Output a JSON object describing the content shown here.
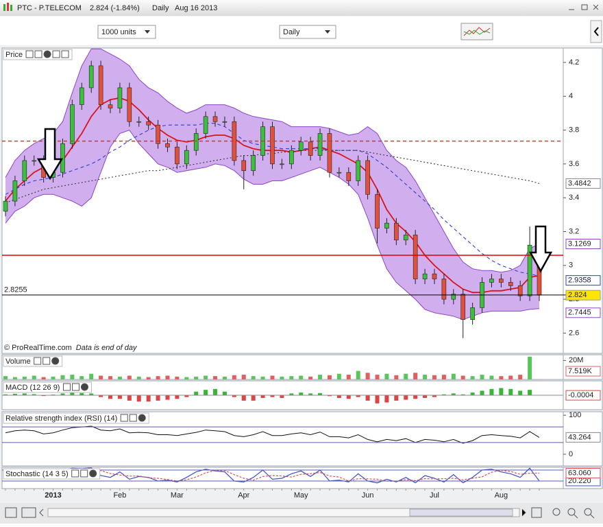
{
  "window": {
    "symbol": "PTC - P.TELECOM",
    "quote": "2.824 (-1.84%)",
    "period": "Daily",
    "date": "Aug 16 2013"
  },
  "toolbar": {
    "units": "1000 units",
    "timeframe": "Daily"
  },
  "chart_data": [
    {
      "type": "candlestick",
      "title": "Price",
      "copyright": "© ProRealTime.com",
      "note": "Data is end of day",
      "categories": [
        null,
        null,
        null,
        null,
        null,
        "2013",
        null,
        null,
        null,
        null,
        null,
        null,
        "Feb",
        null,
        null,
        null,
        null,
        null,
        "Mar",
        null,
        null,
        null,
        null,
        null,
        null,
        "Apr",
        null,
        null,
        null,
        null,
        null,
        "May",
        null,
        null,
        null,
        null,
        null,
        null,
        "Jun",
        null,
        null,
        null,
        null,
        null,
        null,
        "Jul",
        null,
        null,
        null,
        null,
        null,
        null,
        "Aug",
        null,
        null,
        null,
        null
      ],
      "open": [
        3.32,
        3.38,
        3.5,
        3.62,
        3.62,
        3.52,
        3.55,
        3.72,
        3.95,
        4.05,
        4.18,
        3.95,
        3.93,
        4.05,
        3.85,
        3.85,
        3.83,
        3.72,
        3.7,
        3.6,
        3.68,
        3.78,
        3.88,
        3.85,
        3.85,
        3.62,
        3.56,
        3.65,
        3.82,
        3.6,
        3.6,
        3.68,
        3.73,
        3.65,
        3.78,
        3.55,
        3.55,
        3.5,
        3.62,
        3.42,
        3.22,
        3.25,
        3.15,
        3.18,
        2.92,
        2.95,
        2.92,
        2.8,
        2.83,
        2.68,
        2.75,
        2.9,
        2.92,
        2.9,
        2.88,
        2.82,
        3.12
      ],
      "high": [
        3.41,
        3.53,
        3.65,
        3.65,
        3.65,
        3.58,
        3.75,
        3.98,
        4.08,
        4.21,
        4.21,
        3.98,
        4.08,
        4.08,
        3.88,
        3.88,
        3.86,
        3.75,
        3.73,
        3.71,
        3.81,
        3.91,
        3.91,
        3.88,
        3.88,
        3.65,
        3.68,
        3.85,
        3.85,
        3.63,
        3.71,
        3.76,
        3.76,
        3.81,
        3.81,
        3.58,
        3.58,
        3.65,
        3.65,
        3.45,
        3.28,
        3.28,
        3.21,
        3.21,
        2.98,
        2.98,
        2.95,
        2.86,
        2.86,
        2.78,
        2.93,
        2.95,
        2.95,
        2.93,
        2.91,
        3.23,
        3.15
      ],
      "low": [
        3.29,
        3.35,
        3.47,
        3.59,
        3.49,
        3.49,
        3.52,
        3.69,
        3.92,
        4.02,
        3.92,
        3.9,
        3.9,
        3.82,
        3.82,
        3.8,
        3.69,
        3.67,
        3.57,
        3.57,
        3.65,
        3.75,
        3.82,
        3.82,
        3.59,
        3.45,
        3.53,
        3.62,
        3.57,
        3.57,
        3.57,
        3.65,
        3.62,
        3.62,
        3.52,
        3.52,
        3.47,
        3.47,
        3.39,
        3.13,
        3.19,
        3.12,
        3.12,
        2.89,
        2.89,
        2.89,
        2.77,
        2.77,
        2.57,
        2.65,
        2.72,
        2.87,
        2.87,
        2.85,
        2.79,
        2.79,
        2.79
      ],
      "close": [
        3.38,
        3.5,
        3.62,
        3.62,
        3.52,
        3.55,
        3.72,
        3.95,
        4.05,
        4.18,
        3.95,
        3.93,
        4.05,
        3.85,
        3.85,
        3.83,
        3.72,
        3.7,
        3.6,
        3.68,
        3.78,
        3.88,
        3.85,
        3.85,
        3.62,
        3.56,
        3.65,
        3.82,
        3.6,
        3.6,
        3.68,
        3.73,
        3.65,
        3.78,
        3.55,
        3.55,
        3.5,
        3.62,
        3.42,
        3.22,
        3.25,
        3.15,
        3.18,
        2.92,
        2.95,
        2.92,
        2.8,
        2.83,
        2.68,
        2.75,
        2.9,
        2.92,
        2.9,
        2.88,
        2.82,
        3.12,
        2.824
      ],
      "up_color": "#3cbf3c",
      "down_color": "#e0503c",
      "close_label_color": "#ffe600",
      "band": {
        "color": "#c9a0ea",
        "edge_color": "#8e44c9",
        "upper": [
          3.52,
          3.62,
          3.68,
          3.72,
          3.75,
          3.78,
          3.85,
          4.02,
          4.18,
          4.28,
          4.28,
          4.25,
          4.22,
          4.18,
          4.1,
          4.05,
          4.02,
          3.97,
          3.93,
          3.9,
          3.92,
          3.95,
          3.95,
          3.95,
          3.93,
          3.9,
          3.88,
          3.87,
          3.86,
          3.85,
          3.82,
          3.82,
          3.82,
          3.82,
          3.81,
          3.79,
          3.77,
          3.78,
          3.82,
          3.78,
          3.68,
          3.62,
          3.58,
          3.5,
          3.4,
          3.3,
          3.2,
          3.1,
          3.02,
          2.98,
          2.97,
          2.97,
          2.96,
          2.97,
          3.0,
          3.1,
          3.1269
        ],
        "lower": [
          3.25,
          3.32,
          3.35,
          3.4,
          3.42,
          3.42,
          3.4,
          3.38,
          3.35,
          3.4,
          3.55,
          3.7,
          3.78,
          3.8,
          3.72,
          3.66,
          3.6,
          3.58,
          3.55,
          3.56,
          3.57,
          3.58,
          3.6,
          3.59,
          3.56,
          3.51,
          3.48,
          3.48,
          3.5,
          3.5,
          3.52,
          3.54,
          3.56,
          3.58,
          3.55,
          3.52,
          3.48,
          3.42,
          3.28,
          3.12,
          2.98,
          2.9,
          2.85,
          2.8,
          2.74,
          2.72,
          2.71,
          2.7,
          2.68,
          2.7,
          2.72,
          2.73,
          2.73,
          2.73,
          2.73,
          2.74,
          2.7445
        ]
      },
      "lines": [
        {
          "color": "#d9141e",
          "style": "solid",
          "values": [
            3.38,
            3.45,
            3.5,
            3.55,
            3.58,
            3.6,
            3.62,
            3.7,
            3.78,
            3.88,
            3.95,
            3.98,
            3.99,
            3.97,
            3.92,
            3.86,
            3.81,
            3.77,
            3.74,
            3.73,
            3.74,
            3.76,
            3.77,
            3.77,
            3.75,
            3.71,
            3.69,
            3.68,
            3.68,
            3.68,
            3.67,
            3.68,
            3.69,
            3.7,
            3.68,
            3.66,
            3.63,
            3.6,
            3.55,
            3.45,
            3.33,
            3.25,
            3.2,
            3.14,
            3.06,
            3.0,
            2.95,
            2.9,
            2.86,
            2.84,
            2.84,
            2.85,
            2.85,
            2.86,
            2.87,
            2.93,
            2.94
          ]
        },
        {
          "color": "#2a3fd6",
          "style": "dashed",
          "label": true,
          "values": [
            3.42,
            3.45,
            3.48,
            3.5,
            3.51,
            3.52,
            3.54,
            3.56,
            3.58,
            3.6,
            3.63,
            3.67,
            3.7,
            3.74,
            3.77,
            3.8,
            3.82,
            3.83,
            3.83,
            3.83,
            3.83,
            3.84,
            3.84,
            3.82,
            3.78,
            3.74,
            3.72,
            3.71,
            3.7,
            3.69,
            3.69,
            3.69,
            3.69,
            3.69,
            3.68,
            3.68,
            3.68,
            3.68,
            3.66,
            3.62,
            3.58,
            3.53,
            3.48,
            3.43,
            3.38,
            3.33,
            3.27,
            3.22,
            3.17,
            3.12,
            3.07,
            3.03,
            3.0,
            2.98,
            2.96,
            2.95,
            2.9358
          ]
        },
        {
          "color": "#333333",
          "style": "dotted",
          "label": true,
          "values": [
            3.37,
            3.39,
            3.41,
            3.43,
            3.45,
            3.46,
            3.47,
            3.48,
            3.49,
            3.5,
            3.51,
            3.52,
            3.53,
            3.54,
            3.55,
            3.56,
            3.56,
            3.57,
            3.58,
            3.59,
            3.6,
            3.61,
            3.62,
            3.63,
            3.64,
            3.65,
            3.65,
            3.66,
            3.66,
            3.67,
            3.67,
            3.68,
            3.68,
            3.68,
            3.68,
            3.68,
            3.68,
            3.68,
            3.67,
            3.66,
            3.65,
            3.64,
            3.63,
            3.62,
            3.61,
            3.6,
            3.59,
            3.58,
            3.57,
            3.56,
            3.55,
            3.54,
            3.53,
            3.52,
            3.51,
            3.5,
            3.4842
          ]
        }
      ],
      "hlines": [
        {
          "value": 3.735,
          "color": "#e03030",
          "style": "dashed"
        },
        {
          "value": 3.06,
          "color": "#e00000",
          "style": "solid"
        },
        {
          "value": 2.8255,
          "color": "#000000",
          "style": "solid",
          "show_value": true
        }
      ],
      "ylim": [
        2.48,
        4.285
      ],
      "yticks": [
        2.6,
        2.8,
        3,
        3.2,
        3.4,
        3.6,
        3.8,
        4,
        4.2
      ]
    },
    {
      "type": "volume",
      "title": "Volume",
      "up_color": "#5cc45c",
      "down_color": "#e06060",
      "values": [
        3500000,
        2500000,
        3000000,
        4000000,
        2500000,
        3000000,
        4500000,
        5000000,
        3500000,
        6000000,
        4000000,
        3500000,
        3000000,
        4000000,
        3000000,
        2500000,
        3500000,
        4000000,
        3000000,
        2500000,
        3000000,
        4000000,
        3500000,
        3000000,
        4500000,
        5000000,
        3500000,
        3000000,
        4000000,
        3000000,
        3500000,
        4000000,
        3000000,
        5000000,
        4500000,
        6000000,
        5000000,
        9000000,
        7000000,
        5000000,
        6000000,
        4500000,
        6000000,
        7000000,
        5000000,
        4500000,
        5000000,
        6000000,
        4000000,
        3500000,
        5000000,
        4000000,
        3500000,
        4000000,
        5000000,
        24000000,
        7519
      ],
      "last_label": "7.519K",
      "ylim": [
        0,
        26000000
      ],
      "yticks": [
        {
          "value": 20000000,
          "label": "20M"
        }
      ]
    },
    {
      "type": "histogram",
      "title": "MACD (12 26 9)",
      "up_color": "#36b836",
      "down_color": "#dd4444",
      "zero_line": true,
      "values": [
        0.005,
        0.008,
        0.01,
        0.006,
        -0.004,
        0.004,
        0.01,
        0.015,
        0.012,
        0.01,
        -0.01,
        -0.02,
        -0.02,
        -0.03,
        -0.035,
        -0.035,
        -0.03,
        -0.025,
        -0.02,
        -0.01,
        0.02,
        0.03,
        0.035,
        0.02,
        -0.01,
        -0.03,
        -0.03,
        -0.015,
        -0.01,
        -0.015,
        0.01,
        0.015,
        0.01,
        0.012,
        -0.005,
        -0.015,
        -0.02,
        -0.01,
        -0.03,
        -0.045,
        -0.04,
        -0.03,
        -0.025,
        -0.02,
        -0.015,
        -0.01,
        0.005,
        0.01,
        0.005,
        0.015,
        0.025,
        0.035,
        0.04,
        0.035,
        0.025,
        0.03,
        -0.0004
      ],
      "ylim": [
        -0.08,
        0.08
      ]
    },
    {
      "type": "line",
      "title": "Relative strength index (RSI) (14)",
      "color": "#111111",
      "levels": [
        30,
        70
      ],
      "values": [
        55,
        60,
        62,
        60,
        52,
        55,
        62,
        68,
        70,
        72,
        62,
        60,
        65,
        55,
        56,
        55,
        50,
        50,
        48,
        52,
        56,
        62,
        60,
        58,
        48,
        45,
        50,
        58,
        48,
        48,
        52,
        55,
        50,
        57,
        45,
        45,
        42,
        50,
        38,
        32,
        38,
        35,
        40,
        30,
        38,
        36,
        32,
        38,
        28,
        35,
        48,
        50,
        48,
        46,
        42,
        58,
        43.264
      ],
      "ylim": [
        -30,
        109
      ],
      "yticks": [
        0,
        100
      ]
    },
    {
      "type": "stochastic",
      "title": "Stochastic (14 3 5)",
      "levels": [
        20,
        80
      ],
      "ylim": [
        -21,
        95
      ],
      "series": [
        {
          "color": "#3a4fd0",
          "last_label": "20.220",
          "values": [
            60,
            75,
            85,
            80,
            40,
            50,
            80,
            90,
            88,
            92,
            50,
            40,
            70,
            30,
            45,
            40,
            20,
            25,
            15,
            40,
            70,
            85,
            75,
            70,
            20,
            15,
            40,
            80,
            30,
            35,
            60,
            75,
            45,
            80,
            20,
            25,
            15,
            60,
            20,
            10,
            30,
            15,
            40,
            10,
            50,
            35,
            15,
            55,
            10,
            40,
            80,
            85,
            70,
            60,
            40,
            90,
            20.22
          ]
        },
        {
          "color": "#e05050",
          "last_label": "63.060",
          "values": [
            55,
            65,
            73,
            80,
            68,
            57,
            57,
            73,
            86,
            90,
            77,
            61,
            53,
            47,
            48,
            38,
            35,
            28,
            20,
            27,
            42,
            65,
            77,
            77,
            55,
            35,
            25,
            45,
            50,
            48,
            42,
            57,
            60,
            67,
            48,
            42,
            20,
            33,
            32,
            30,
            20,
            18,
            28,
            22,
            33,
            32,
            33,
            35,
            27,
            35,
            43,
            68,
            78,
            72,
            57,
            63,
            63.06
          ]
        }
      ]
    }
  ]
}
